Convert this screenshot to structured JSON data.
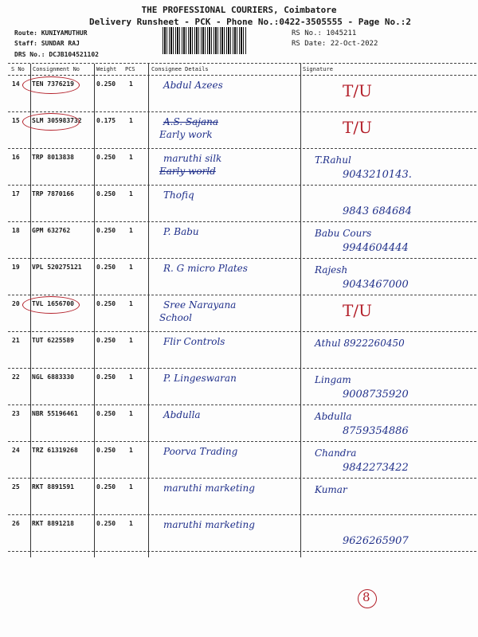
{
  "header": {
    "company": "THE PROFESSIONAL COURIERS, Coimbatore",
    "subtitle": "Delivery Runsheet - PCK - Phone No.:0422-3505555 - Page No.:2",
    "route": "Route: KUNIYAMUTHUR",
    "staff": "Staff: SUNDAR RAJ",
    "drs": "DRS No.: DCJB104521102",
    "rs_no": "RS No.: 1045211",
    "rs_date": "RS Date: 22-Oct-2022"
  },
  "columns": [
    "S No",
    "Consignment No",
    "Weight",
    "PCS",
    "Consignee Details",
    "Signature"
  ],
  "rows": [
    {
      "sno": "14",
      "cons": "TEN 7376219",
      "weight": "0.250",
      "pcs": "1",
      "details": [
        "Abdul Azees"
      ],
      "sign": [
        "T/U"
      ],
      "circled": true,
      "red": true
    },
    {
      "sno": "15",
      "cons": "SLM 305983732",
      "weight": "0.175",
      "pcs": "1",
      "details": [
        "A.S. Sajana",
        "Early work"
      ],
      "sign": [
        "T/U"
      ],
      "circled": true,
      "red": true,
      "strike_first": true
    },
    {
      "sno": "16",
      "cons": "TRP 8013838",
      "weight": "0.250",
      "pcs": "1",
      "details": [
        "maruthi silk",
        "Early world"
      ],
      "sign": [
        "T.Rahul",
        "9043210143."
      ],
      "strike_second": true
    },
    {
      "sno": "17",
      "cons": "TRP 7870166",
      "weight": "0.250",
      "pcs": "1",
      "details": [
        "Thofiq"
      ],
      "sign": [
        "",
        "9843 684684"
      ]
    },
    {
      "sno": "18",
      "cons": "GPM 632762",
      "weight": "0.250",
      "pcs": "1",
      "details": [
        "P. Babu"
      ],
      "sign": [
        "Babu  Cours",
        "9944604444"
      ]
    },
    {
      "sno": "19",
      "cons": "VPL 520275121",
      "weight": "0.250",
      "pcs": "1",
      "details": [
        "R. G micro Plates"
      ],
      "sign": [
        "Rajesh",
        "9043467000"
      ]
    },
    {
      "sno": "20",
      "cons": "TVL 1656700",
      "weight": "0.250",
      "pcs": "1",
      "details": [
        "Sree Narayana",
        "School"
      ],
      "sign": [
        "T/U"
      ],
      "circled": true,
      "red": true
    },
    {
      "sno": "21",
      "cons": "TUT 6225589",
      "weight": "0.250",
      "pcs": "1",
      "details": [
        "Flir Controls"
      ],
      "sign": [
        "Athul  8922260450"
      ]
    },
    {
      "sno": "22",
      "cons": "NGL 6883330",
      "weight": "0.250",
      "pcs": "1",
      "details": [
        "P. Lingeswaran"
      ],
      "sign": [
        "Lingam",
        "9008735920"
      ]
    },
    {
      "sno": "23",
      "cons": "NBR 55196461",
      "weight": "0.250",
      "pcs": "1",
      "details": [
        "Abdulla"
      ],
      "sign": [
        "Abdulla",
        "8759354886"
      ]
    },
    {
      "sno": "24",
      "cons": "TRZ 61319268",
      "weight": "0.250",
      "pcs": "1",
      "details": [
        "Poorva Trading"
      ],
      "sign": [
        "Chandra",
        "9842273422"
      ]
    },
    {
      "sno": "25",
      "cons": "RKT 8891591",
      "weight": "0.250",
      "pcs": "1",
      "details": [
        "maruthi marketing"
      ],
      "sign": [
        "Kumar"
      ]
    },
    {
      "sno": "26",
      "cons": "RKT 8891218",
      "weight": "0.250",
      "pcs": "1",
      "details": [
        "maruthi marketing"
      ],
      "sign": [
        "",
        "9626265907"
      ]
    }
  ],
  "page_mark": "8",
  "colors": {
    "ink_blue": "#1f2f8a",
    "ink_red": "#b3202a"
  }
}
